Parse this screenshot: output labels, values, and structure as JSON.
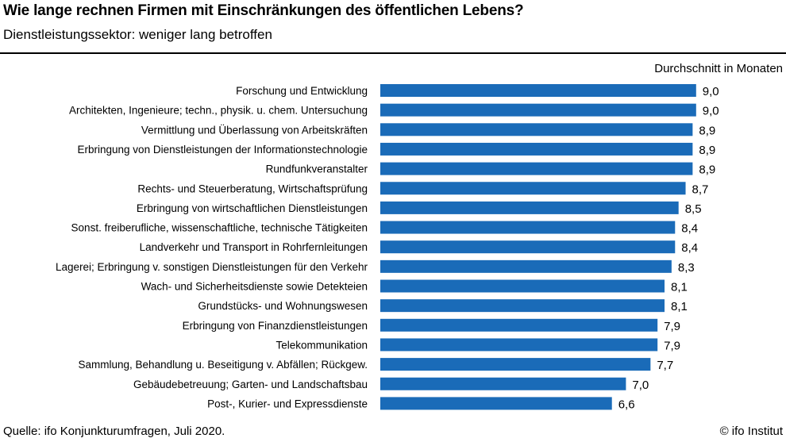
{
  "header": {
    "title": "Wie lange rechnen Firmen mit Einschränkungen des öffentlichen Lebens?",
    "subtitle": "Dienstleistungssektor: weniger lang betroffen"
  },
  "chart_data": {
    "type": "bar",
    "orientation": "horizontal",
    "unit_label": "Durchschnitt in Monaten",
    "categories": [
      "Forschung und Entwicklung",
      "Architekten, Ingenieure; techn., physik. u. chem. Untersuchung",
      "Vermittlung und Überlassung von Arbeitskräften",
      "Erbringung von Dienstleistungen der Informationstechnologie",
      "Rundfunkveranstalter",
      "Rechts- und Steuerberatung, Wirtschaftsprüfung",
      "Erbringung von wirtschaftlichen Dienstleistungen",
      "Sonst. freiberufliche, wissenschaftliche, technische Tätigkeiten",
      "Landverkehr und Transport in Rohrfernleitungen",
      "Lagerei; Erbringung v. sonstigen Dienstleistungen für den Verkehr",
      "Wach- und Sicherheitsdienste sowie Detekteien",
      "Grundstücks- und Wohnungswesen",
      "Erbringung von Finanzdienstleistungen",
      "Telekommunikation",
      "Sammlung, Behandlung u. Beseitigung v. Abfällen; Rückgew.",
      "Gebäudebetreuung; Garten- und Landschaftsbau",
      "Post-, Kurier- und Expressdienste"
    ],
    "values": [
      9.0,
      9.0,
      8.9,
      8.9,
      8.9,
      8.7,
      8.5,
      8.4,
      8.4,
      8.3,
      8.1,
      8.1,
      7.9,
      7.9,
      7.7,
      7.0,
      6.6
    ],
    "value_labels": [
      "9,0",
      "9,0",
      "8,9",
      "8,9",
      "8,9",
      "8,7",
      "8,5",
      "8,4",
      "8,4",
      "8,3",
      "8,1",
      "8,1",
      "7,9",
      "7,9",
      "7,7",
      "7,0",
      "6,6"
    ],
    "bar_color": "#1a6bb8",
    "grid": false,
    "legend": "none"
  },
  "footer": {
    "source": "Quelle: ifo Konjunkturumfragen, Juli 2020.",
    "copyright": "© ifo Institut"
  }
}
